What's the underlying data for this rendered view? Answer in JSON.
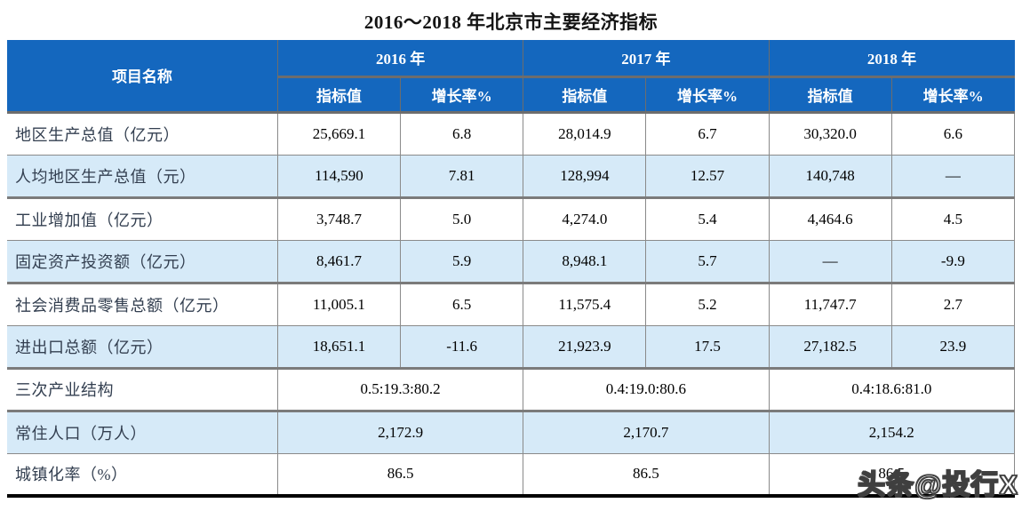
{
  "title": "2016～2018 年北京市主要经济指标",
  "table": {
    "header": {
      "item_col": "项目名称",
      "years": [
        "2016 年",
        "2017 年",
        "2018 年"
      ],
      "subheaders": [
        "指标值",
        "增长率%"
      ]
    },
    "rows": [
      {
        "label": "地区生产总值（亿元）",
        "cells": [
          "25,669.1",
          "6.8",
          "28,014.9",
          "6.7",
          "30,320.0",
          "6.6"
        ]
      },
      {
        "label": "人均地区生产总值（元）",
        "cells": [
          "114,590",
          "7.81",
          "128,994",
          "12.57",
          "140,748",
          "—"
        ]
      },
      {
        "label": "工业增加值（亿元）",
        "cells": [
          "3,748.7",
          "5.0",
          "4,274.0",
          "5.4",
          "4,464.6",
          "4.5"
        ]
      },
      {
        "label": "固定资产投资额（亿元）",
        "cells": [
          "8,461.7",
          "5.9",
          "8,948.1",
          "5.7",
          "—",
          "-9.9"
        ]
      },
      {
        "label": "社会消费品零售总额（亿元）",
        "cells": [
          "11,005.1",
          "6.5",
          "11,575.4",
          "5.2",
          "11,747.7",
          "2.7"
        ]
      },
      {
        "label": "进出口总额（亿元）",
        "cells": [
          "18,651.1",
          "-11.6",
          "21,923.9",
          "17.5",
          "27,182.5",
          "23.9"
        ]
      },
      {
        "label": "三次产业结构",
        "merged": [
          "0.5:19.3:80.2",
          "0.4:19.0:80.6",
          "0.4:18.6:81.0"
        ]
      },
      {
        "label": "常住人口（万人）",
        "merged": [
          "2,172.9",
          "2,170.7",
          "2,154.2"
        ]
      },
      {
        "label": "城镇化率（%）",
        "merged": [
          "86.5",
          "86.5",
          "86.5"
        ]
      }
    ]
  },
  "watermark": "头条@投行X",
  "colors": {
    "header_bg": "#1467BE",
    "header_text": "#ffffff",
    "alt_row_bg": "#D6EAF8",
    "label_text": "#333F50",
    "grid_line": "#8a8a8a",
    "bottom_border": "#000000"
  }
}
